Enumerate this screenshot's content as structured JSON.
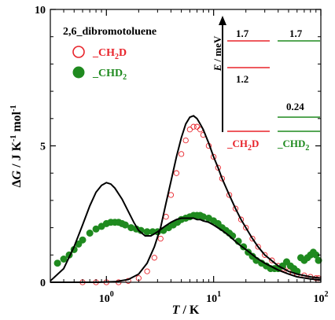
{
  "chart_data": {
    "type": "scatter",
    "title": "2,6_dibromotoluene",
    "xscale": "log",
    "xlim": [
      0.3,
      100
    ],
    "ylim": [
      0,
      10
    ],
    "xlabel": {
      "main": "T",
      "unit": " / K"
    },
    "ylabel": {
      "main": "Δ",
      "var": "G",
      "unit": " / J K",
      "sup1": "-1",
      "mol": " mol",
      "sup2": "-1"
    },
    "yticks": [
      0,
      5,
      10
    ],
    "xticks": [
      {
        "value": 1,
        "base": "10",
        "exp": "0"
      },
      {
        "value": 10,
        "base": "10",
        "exp": "1"
      },
      {
        "value": 100,
        "base": "10",
        "exp": "2"
      }
    ],
    "colors": {
      "ch2d": "#e8232a",
      "chd2": "#1f8a1f",
      "fit": "#000000"
    },
    "legend": [
      {
        "label_prefix": "_CH",
        "label_sub": "2",
        "label_suffix": "D",
        "marker": "open-circle",
        "color": "#e8232a"
      },
      {
        "label_prefix": "_CHD",
        "label_sub": "2",
        "label_suffix": "",
        "marker": "filled-circle",
        "color": "#1f8a1f"
      }
    ],
    "series": [
      {
        "name": "_CH2D",
        "marker": "open-circle",
        "color": "#e8232a",
        "x": [
          0.6,
          0.8,
          1.0,
          1.3,
          1.6,
          2.0,
          2.4,
          2.8,
          3.2,
          3.6,
          4.0,
          4.5,
          5.0,
          5.5,
          6.0,
          6.5,
          7.0,
          7.5,
          8.0,
          9.0,
          10.0,
          11.0,
          12.0,
          14.0,
          16.0,
          18.0,
          20.0,
          23.0,
          26.0,
          30.0,
          35.0,
          40.0,
          45.0,
          50.0,
          55.0,
          60.0,
          70.0,
          80.0,
          90.0,
          95.0
        ],
        "y": [
          0.0,
          0.0,
          0.0,
          0.0,
          0.05,
          0.15,
          0.4,
          0.9,
          1.6,
          2.4,
          3.2,
          4.0,
          4.7,
          5.2,
          5.6,
          5.7,
          5.7,
          5.6,
          5.4,
          5.0,
          4.6,
          4.2,
          3.8,
          3.2,
          2.7,
          2.3,
          2.0,
          1.6,
          1.3,
          1.0,
          0.8,
          0.6,
          0.5,
          0.4,
          0.35,
          0.3,
          0.25,
          0.2,
          0.15,
          0.15
        ]
      },
      {
        "name": "_CHD2",
        "marker": "filled-circle",
        "color": "#1f8a1f",
        "x": [
          0.35,
          0.4,
          0.45,
          0.5,
          0.55,
          0.6,
          0.7,
          0.8,
          0.9,
          1.0,
          1.1,
          1.2,
          1.3,
          1.4,
          1.5,
          1.7,
          1.9,
          2.1,
          2.4,
          2.7,
          3.0,
          3.4,
          3.8,
          4.2,
          4.6,
          5.0,
          5.5,
          6.0,
          6.5,
          7.0,
          7.5,
          8.0,
          9.0,
          10.0,
          11.0,
          12.0,
          13.0,
          14.0,
          15.0,
          17.0,
          19.0,
          21.0,
          23.0,
          25.0,
          28.0,
          31.0,
          34.0,
          37.0,
          40.0,
          44.0,
          48.0,
          52.0,
          56.0,
          60.0,
          65.0,
          70.0,
          75.0,
          80.0,
          85.0,
          90.0,
          95.0
        ],
        "y": [
          0.7,
          0.85,
          1.0,
          1.2,
          1.4,
          1.55,
          1.8,
          1.95,
          2.05,
          2.15,
          2.2,
          2.2,
          2.2,
          2.15,
          2.1,
          2.0,
          1.95,
          1.9,
          1.85,
          1.85,
          1.85,
          1.9,
          2.0,
          2.1,
          2.2,
          2.3,
          2.35,
          2.4,
          2.45,
          2.45,
          2.45,
          2.4,
          2.35,
          2.25,
          2.15,
          2.0,
          1.9,
          1.8,
          1.7,
          1.5,
          1.3,
          1.1,
          0.95,
          0.8,
          0.7,
          0.6,
          0.5,
          0.5,
          0.5,
          0.6,
          0.75,
          0.6,
          0.5,
          0.4,
          0.9,
          0.8,
          0.9,
          1.0,
          1.1,
          1.0,
          0.8
        ]
      },
      {
        "name": "",
        "marker": "line",
        "color": "#000000",
        "x": [
          0.3,
          0.4,
          0.5,
          0.6,
          0.7,
          0.8,
          0.9,
          1.0,
          1.1,
          1.2,
          1.4,
          1.6,
          1.8,
          2.0,
          2.3,
          2.6,
          3.0,
          3.5,
          4.0,
          4.5,
          5.0,
          5.5,
          6.0,
          6.5,
          7.0,
          7.5,
          8.0,
          9.0,
          10.0,
          12.0,
          14.0,
          17.0,
          20.0,
          25.0,
          30.0,
          40.0,
          50.0,
          60.0,
          80.0,
          100.0
        ],
        "y": [
          0.05,
          0.5,
          1.3,
          2.1,
          2.8,
          3.3,
          3.55,
          3.65,
          3.6,
          3.45,
          3.05,
          2.6,
          2.2,
          1.9,
          1.7,
          1.7,
          1.85,
          2.05,
          2.2,
          2.3,
          2.35,
          2.35,
          2.35,
          2.35,
          2.3,
          2.3,
          2.25,
          2.2,
          2.1,
          1.9,
          1.7,
          1.4,
          1.2,
          0.9,
          0.7,
          0.45,
          0.3,
          0.2,
          0.12,
          0.08
        ]
      },
      {
        "name": "",
        "marker": "line",
        "color": "#000000",
        "x": [
          0.3,
          0.8,
          1.2,
          1.6,
          2.0,
          2.4,
          2.8,
          3.2,
          3.6,
          4.0,
          4.5,
          5.0,
          5.5,
          6.0,
          6.5,
          7.0,
          7.5,
          8.0,
          9.0,
          10.0,
          11.0,
          12.0,
          14.0,
          16.0,
          18.0,
          20.0,
          23.0,
          26.0,
          30.0,
          40.0,
          50.0,
          60.0,
          80.0,
          100.0
        ],
        "y": [
          0.0,
          0.0,
          0.02,
          0.1,
          0.3,
          0.7,
          1.3,
          2.0,
          2.9,
          3.7,
          4.6,
          5.3,
          5.8,
          6.05,
          6.1,
          6.0,
          5.8,
          5.6,
          5.1,
          4.6,
          4.2,
          3.8,
          3.2,
          2.7,
          2.3,
          2.0,
          1.6,
          1.3,
          1.0,
          0.6,
          0.4,
          0.3,
          0.2,
          0.15
        ]
      }
    ],
    "inset": {
      "ylabel": {
        "main": "E",
        "unit": " / meV"
      },
      "levels": {
        "ch2d": {
          "upper": "1.7",
          "lower": "1.2",
          "label_prefix": "_CH",
          "label_sub": "2",
          "label_suffix": "D"
        },
        "chd2": {
          "upper": "1.7",
          "lower": "0.24",
          "label_prefix": "_CHD",
          "label_sub": "2",
          "label_suffix": ""
        }
      }
    }
  }
}
